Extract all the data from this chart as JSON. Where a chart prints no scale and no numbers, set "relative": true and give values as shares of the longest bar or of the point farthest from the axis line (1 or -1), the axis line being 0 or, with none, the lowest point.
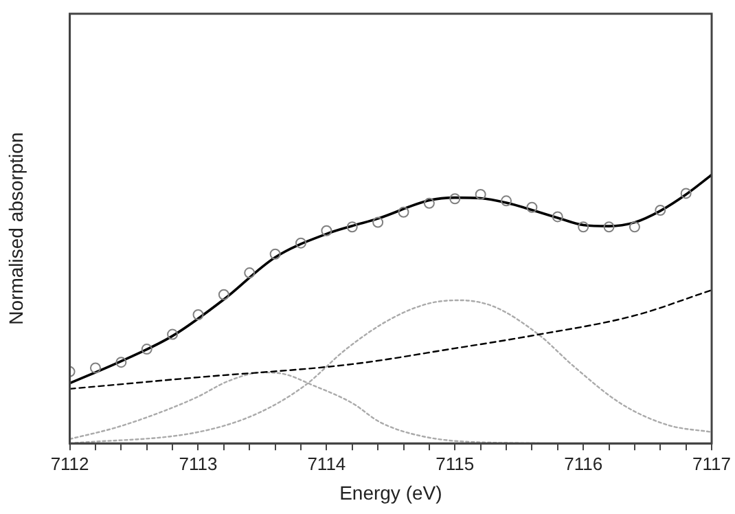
{
  "chart_data": {
    "type": "line",
    "xlabel": "Energy (eV)",
    "ylabel": "Normalised absorption",
    "relative": true,
    "xlim": [
      7112,
      7117
    ],
    "xticks": [
      7112,
      {
        "value": 7112.2,
        "label": null
      },
      {
        "value": 7112.4,
        "label": null
      },
      {
        "value": 7112.6,
        "label": null
      },
      {
        "value": 7112.8,
        "label": null
      },
      7113,
      {
        "value": 7113.2,
        "label": null
      },
      {
        "value": 7113.4,
        "label": null
      },
      {
        "value": 7113.6,
        "label": null
      },
      {
        "value": 7113.8,
        "label": null
      },
      7114,
      {
        "value": 7114.2,
        "label": null
      },
      {
        "value": 7114.4,
        "label": null
      },
      {
        "value": 7114.6,
        "label": null
      },
      {
        "value": 7114.8,
        "label": null
      },
      7115,
      {
        "value": 7115.2,
        "label": null
      },
      {
        "value": 7115.4,
        "label": null
      },
      {
        "value": 7115.6,
        "label": null
      },
      {
        "value": 7115.8,
        "label": null
      },
      7116,
      {
        "value": 7116.2,
        "label": null
      },
      {
        "value": 7116.4,
        "label": null
      },
      {
        "value": 7116.6,
        "label": null
      },
      {
        "value": 7116.8,
        "label": null
      },
      7117
    ],
    "grid": false,
    "legend": false,
    "series": [
      {
        "type": "scatter",
        "marker": "circle",
        "color": "#808080",
        "x": [
          7112.0,
          7112.2,
          7112.4,
          7112.6,
          7112.8,
          7113.0,
          7113.2,
          7113.4,
          7113.6,
          7113.8,
          7114.0,
          7114.2,
          7114.4,
          7114.6,
          7114.8,
          7115.0,
          7115.2,
          7115.4,
          7115.6,
          7115.8,
          7116.0,
          7116.2,
          7116.4,
          7116.6,
          7116.8
        ],
        "values": [
          0.267,
          0.281,
          0.302,
          0.351,
          0.406,
          0.479,
          0.554,
          0.635,
          0.705,
          0.746,
          0.792,
          0.806,
          0.823,
          0.861,
          0.894,
          0.911,
          0.927,
          0.903,
          0.879,
          0.844,
          0.806,
          0.806,
          0.806,
          0.868,
          0.931
        ]
      },
      {
        "line_style": "solid",
        "color": "#000000",
        "x": [
          7112.0,
          7112.4,
          7112.8,
          7113.2,
          7113.6,
          7114.0,
          7114.2,
          7114.4,
          7114.8,
          7115.0,
          7115.2,
          7115.4,
          7115.8,
          7116.0,
          7116.2,
          7116.4,
          7116.6,
          7116.8,
          7117.0
        ],
        "values": [
          0.224,
          0.306,
          0.4,
          0.536,
          0.693,
          0.78,
          0.81,
          0.837,
          0.905,
          0.915,
          0.913,
          0.896,
          0.84,
          0.813,
          0.809,
          0.823,
          0.866,
          0.927,
          1.0
        ]
      },
      {
        "type": "line",
        "line_style": "dashed",
        "color": "#000000",
        "x": [
          7112.0,
          7113.0,
          7114.2,
          7115.0,
          7115.6,
          7116.4,
          7117.0
        ],
        "values": [
          0.203,
          0.246,
          0.295,
          0.354,
          0.401,
          0.476,
          0.571
        ]
      },
      {
        "type": "line",
        "line_style": "dotted",
        "color": "#aaaaaa",
        "x": [
          7112.0,
          7112.36,
          7112.73,
          7112.99,
          7113.24,
          7113.5,
          7113.65,
          7113.9,
          7114.2,
          7114.42,
          7114.75,
          7115.2,
          7116.0,
          7117.0
        ],
        "values": [
          0.016,
          0.059,
          0.12,
          0.172,
          0.233,
          0.264,
          0.26,
          0.215,
          0.15,
          0.078,
          0.026,
          0.004,
          0.0,
          0.0
        ]
      },
      {
        "type": "line",
        "line_style": "dotted",
        "color": "#aaaaaa",
        "x": [
          7112.0,
          7113.0,
          7113.46,
          7113.83,
          7114.15,
          7114.48,
          7114.78,
          7115.03,
          7115.3,
          7115.65,
          7115.93,
          7116.3,
          7116.66,
          7117.0
        ],
        "values": [
          0.0,
          0.042,
          0.111,
          0.215,
          0.35,
          0.458,
          0.519,
          0.533,
          0.51,
          0.406,
          0.285,
          0.146,
          0.068,
          0.042
        ]
      }
    ]
  }
}
